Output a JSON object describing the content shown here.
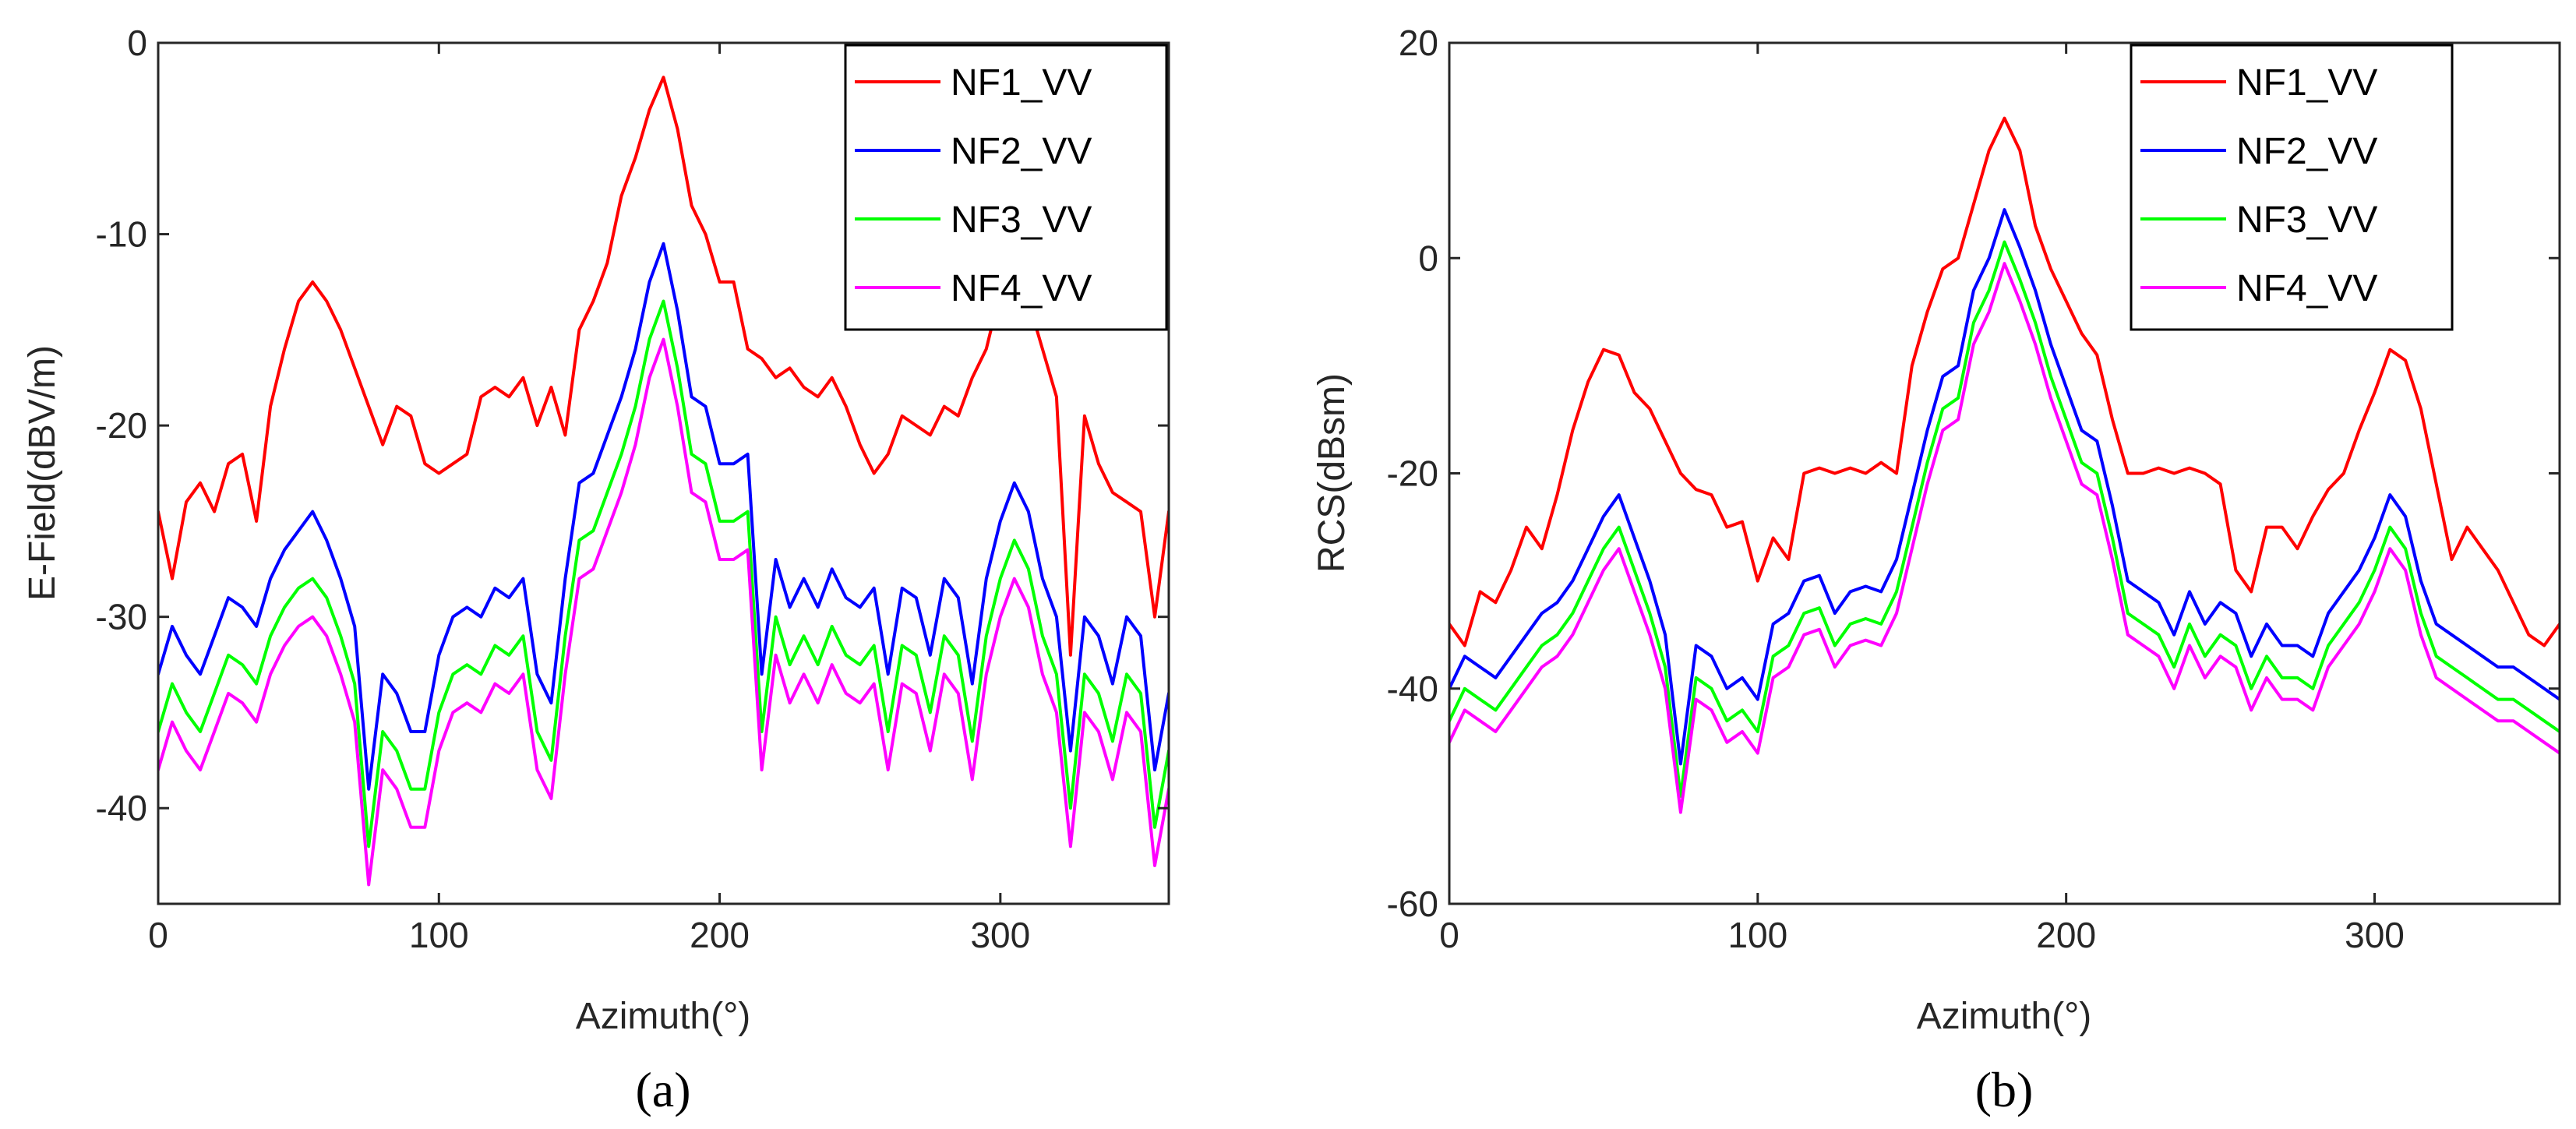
{
  "colors": {
    "NF1": "#ff0000",
    "NF2": "#0000ff",
    "NF3": "#00ff00",
    "NF4": "#ff00ff"
  },
  "chart_data": [
    {
      "type": "line",
      "panel_label": "(a)",
      "xlabel": "Azimuth(°)",
      "ylabel": "E-Field(dBV/m)",
      "xlim": [
        0,
        360
      ],
      "ylim": [
        -45,
        0
      ],
      "xticks": [
        0,
        100,
        200,
        300
      ],
      "xtick_labels": [
        "0",
        "100",
        "200",
        "300"
      ],
      "yticks": [
        0,
        -10,
        -20,
        -30,
        -40
      ],
      "ytick_labels": [
        "0",
        "-10",
        "-20",
        "-30",
        "-40"
      ],
      "grid": false,
      "legend_position": "top-right",
      "x": [
        0,
        5,
        10,
        15,
        20,
        25,
        30,
        35,
        40,
        45,
        50,
        55,
        60,
        65,
        70,
        75,
        80,
        85,
        90,
        95,
        100,
        105,
        110,
        115,
        120,
        125,
        130,
        135,
        140,
        145,
        150,
        155,
        160,
        165,
        170,
        175,
        180,
        185,
        190,
        195,
        200,
        205,
        210,
        215,
        220,
        225,
        230,
        235,
        240,
        245,
        250,
        255,
        260,
        265,
        270,
        275,
        280,
        285,
        290,
        295,
        300,
        305,
        310,
        315,
        320,
        325,
        330,
        335,
        340,
        345,
        350,
        355,
        360
      ],
      "series": [
        {
          "name": "NF1_VV",
          "color": "#ff0000",
          "values": [
            -24.5,
            -28,
            -24,
            -23,
            -24.5,
            -22,
            -21.5,
            -25,
            -19,
            -16,
            -13.5,
            -12.5,
            -13.5,
            -15,
            -17,
            -19,
            -21,
            -19,
            -19.5,
            -22,
            -22.5,
            -22,
            -21.5,
            -18.5,
            -18,
            -18.5,
            -17.5,
            -20,
            -18,
            -20.5,
            -15,
            -13.5,
            -11.5,
            -8,
            -6,
            -3.5,
            -1.8,
            -4.5,
            -8.5,
            -10,
            -12.5,
            -12.5,
            -16,
            -16.5,
            -17.5,
            -17,
            -18,
            -18.5,
            -17.5,
            -19,
            -21,
            -22.5,
            -21.5,
            -19.5,
            -20,
            -20.5,
            -19,
            -19.5,
            -17.5,
            -16,
            -13,
            -12,
            -13.5,
            -16,
            -18.5,
            -32,
            -19.5,
            -22,
            -23.5,
            -24,
            -24.5,
            -30,
            -24.5
          ]
        },
        {
          "name": "NF2_VV",
          "color": "#0000ff",
          "values": [
            -33,
            -30.5,
            -32,
            -33,
            -31,
            -29,
            -29.5,
            -30.5,
            -28,
            -26.5,
            -25.5,
            -24.5,
            -26,
            -28,
            -30.5,
            -39,
            -33,
            -34,
            -36,
            -36,
            -32,
            -30,
            -29.5,
            -30,
            -28.5,
            -29,
            -28,
            -33,
            -34.5,
            -28,
            -23,
            -22.5,
            -20.5,
            -18.5,
            -16,
            -12.5,
            -10.5,
            -14,
            -18.5,
            -19,
            -22,
            -22,
            -21.5,
            -33,
            -27,
            -29.5,
            -28,
            -29.5,
            -27.5,
            -29,
            -29.5,
            -28.5,
            -33,
            -28.5,
            -29,
            -32,
            -28,
            -29,
            -33.5,
            -28,
            -25,
            -23,
            -24.5,
            -28,
            -30,
            -37,
            -30,
            -31,
            -33.5,
            -30,
            -31,
            -38,
            -34
          ]
        },
        {
          "name": "NF3_VV",
          "color": "#00ff00",
          "values": [
            -36,
            -33.5,
            -35,
            -36,
            -34,
            -32,
            -32.5,
            -33.5,
            -31,
            -29.5,
            -28.5,
            -28,
            -29,
            -31,
            -33.5,
            -42,
            -36,
            -37,
            -39,
            -39,
            -35,
            -33,
            -32.5,
            -33,
            -31.5,
            -32,
            -31,
            -36,
            -37.5,
            -31,
            -26,
            -25.5,
            -23.5,
            -21.5,
            -19,
            -15.5,
            -13.5,
            -17,
            -21.5,
            -22,
            -25,
            -25,
            -24.5,
            -36,
            -30,
            -32.5,
            -31,
            -32.5,
            -30.5,
            -32,
            -32.5,
            -31.5,
            -36,
            -31.5,
            -32,
            -35,
            -31,
            -32,
            -36.5,
            -31,
            -28,
            -26,
            -27.5,
            -31,
            -33,
            -40,
            -33,
            -34,
            -36.5,
            -33,
            -34,
            -41,
            -37
          ]
        },
        {
          "name": "NF4_VV",
          "color": "#ff00ff",
          "values": [
            -38,
            -35.5,
            -37,
            -38,
            -36,
            -34,
            -34.5,
            -35.5,
            -33,
            -31.5,
            -30.5,
            -30,
            -31,
            -33,
            -35.5,
            -44,
            -38,
            -39,
            -41,
            -41,
            -37,
            -35,
            -34.5,
            -35,
            -33.5,
            -34,
            -33,
            -38,
            -39.5,
            -33,
            -28,
            -27.5,
            -25.5,
            -23.5,
            -21,
            -17.5,
            -15.5,
            -19,
            -23.5,
            -24,
            -27,
            -27,
            -26.5,
            -38,
            -32,
            -34.5,
            -33,
            -34.5,
            -32.5,
            -34,
            -34.5,
            -33.5,
            -38,
            -33.5,
            -34,
            -37,
            -33,
            -34,
            -38.5,
            -33,
            -30,
            -28,
            -29.5,
            -33,
            -35,
            -42,
            -35,
            -36,
            -38.5,
            -35,
            -36,
            -43,
            -39
          ]
        }
      ]
    },
    {
      "type": "line",
      "panel_label": "(b)",
      "xlabel": "Azimuth(°)",
      "ylabel": "RCS(dBsm)",
      "xlim": [
        0,
        360
      ],
      "ylim": [
        -60,
        20
      ],
      "xticks": [
        0,
        100,
        200,
        300
      ],
      "xtick_labels": [
        "0",
        "100",
        "200",
        "300"
      ],
      "yticks": [
        20,
        0,
        -20,
        -40,
        -60
      ],
      "ytick_labels": [
        "20",
        "0",
        "-20",
        "-40",
        "-60"
      ],
      "grid": false,
      "legend_position": "top-right",
      "x": [
        0,
        5,
        10,
        15,
        20,
        25,
        30,
        35,
        40,
        45,
        50,
        55,
        60,
        65,
        70,
        75,
        80,
        85,
        90,
        95,
        100,
        105,
        110,
        115,
        120,
        125,
        130,
        135,
        140,
        145,
        150,
        155,
        160,
        165,
        170,
        175,
        180,
        185,
        190,
        195,
        200,
        205,
        210,
        215,
        220,
        225,
        230,
        235,
        240,
        245,
        250,
        255,
        260,
        265,
        270,
        275,
        280,
        285,
        290,
        295,
        300,
        305,
        310,
        315,
        320,
        325,
        330,
        335,
        340,
        345,
        350,
        355,
        360
      ],
      "series": [
        {
          "name": "NF1_VV",
          "color": "#ff0000",
          "values": [
            -34,
            -36,
            -31,
            -32,
            -29,
            -25,
            -27,
            -22,
            -16,
            -11.5,
            -8.5,
            -9,
            -12.5,
            -14,
            -17,
            -20,
            -21.5,
            -22,
            -25,
            -24.5,
            -30,
            -26,
            -28,
            -20,
            -19.5,
            -20,
            -19.5,
            -20,
            -19,
            -20,
            -10,
            -5,
            -1,
            0,
            5,
            10,
            13,
            10,
            3,
            -1,
            -4,
            -7,
            -9,
            -15,
            -20,
            -20,
            -19.5,
            -20,
            -19.5,
            -20,
            -21,
            -29,
            -31,
            -25,
            -25,
            -27,
            -24,
            -21.5,
            -20,
            -16,
            -12.5,
            -8.5,
            -9.5,
            -14,
            -21,
            -28,
            -25,
            -27,
            -29,
            -32,
            -35,
            -36,
            -34
          ]
        },
        {
          "name": "NF2_VV",
          "color": "#0000ff",
          "values": [
            -40,
            -37,
            -38,
            -39,
            -37,
            -35,
            -33,
            -32,
            -30,
            -27,
            -24,
            -22,
            -26,
            -30,
            -35,
            -47,
            -36,
            -37,
            -40,
            -39,
            -41,
            -34,
            -33,
            -30,
            -29.5,
            -33,
            -31,
            -30.5,
            -31,
            -28,
            -22,
            -16,
            -11,
            -10,
            -3,
            0,
            4.5,
            1,
            -3,
            -8,
            -12,
            -16,
            -17,
            -23,
            -30,
            -31,
            -32,
            -35,
            -31,
            -34,
            -32,
            -33,
            -37,
            -34,
            -36,
            -36,
            -37,
            -33,
            -31,
            -29,
            -26,
            -22,
            -24,
            -30,
            -34,
            -35,
            -36,
            -37,
            -38,
            -38,
            -39,
            -40,
            -41
          ]
        },
        {
          "name": "NF3_VV",
          "color": "#00ff00",
          "values": [
            -43,
            -40,
            -41,
            -42,
            -40,
            -38,
            -36,
            -35,
            -33,
            -30,
            -27,
            -25,
            -29,
            -33,
            -38,
            -50,
            -39,
            -40,
            -43,
            -42,
            -44,
            -37,
            -36,
            -33,
            -32.5,
            -36,
            -34,
            -33.5,
            -34,
            -31,
            -25,
            -19,
            -14,
            -13,
            -6,
            -3,
            1.5,
            -2,
            -6,
            -11,
            -15,
            -19,
            -20,
            -26,
            -33,
            -34,
            -35,
            -38,
            -34,
            -37,
            -35,
            -36,
            -40,
            -37,
            -39,
            -39,
            -40,
            -36,
            -34,
            -32,
            -29,
            -25,
            -27,
            -33,
            -37,
            -38,
            -39,
            -40,
            -41,
            -41,
            -42,
            -43,
            -44
          ]
        },
        {
          "name": "NF4_VV",
          "color": "#ff00ff",
          "values": [
            -45,
            -42,
            -43,
            -44,
            -42,
            -40,
            -38,
            -37,
            -35,
            -32,
            -29,
            -27,
            -31,
            -35,
            -40,
            -51.5,
            -41,
            -42,
            -45,
            -44,
            -46,
            -39,
            -38,
            -35,
            -34.5,
            -38,
            -36,
            -35.5,
            -36,
            -33,
            -27,
            -21,
            -16,
            -15,
            -8,
            -5,
            -0.5,
            -4,
            -8,
            -13,
            -17,
            -21,
            -22,
            -28,
            -35,
            -36,
            -37,
            -40,
            -36,
            -39,
            -37,
            -38,
            -42,
            -39,
            -41,
            -41,
            -42,
            -38,
            -36,
            -34,
            -31,
            -27,
            -29,
            -35,
            -39,
            -40,
            -41,
            -42,
            -43,
            -43,
            -44,
            -45,
            -46
          ]
        }
      ]
    }
  ]
}
